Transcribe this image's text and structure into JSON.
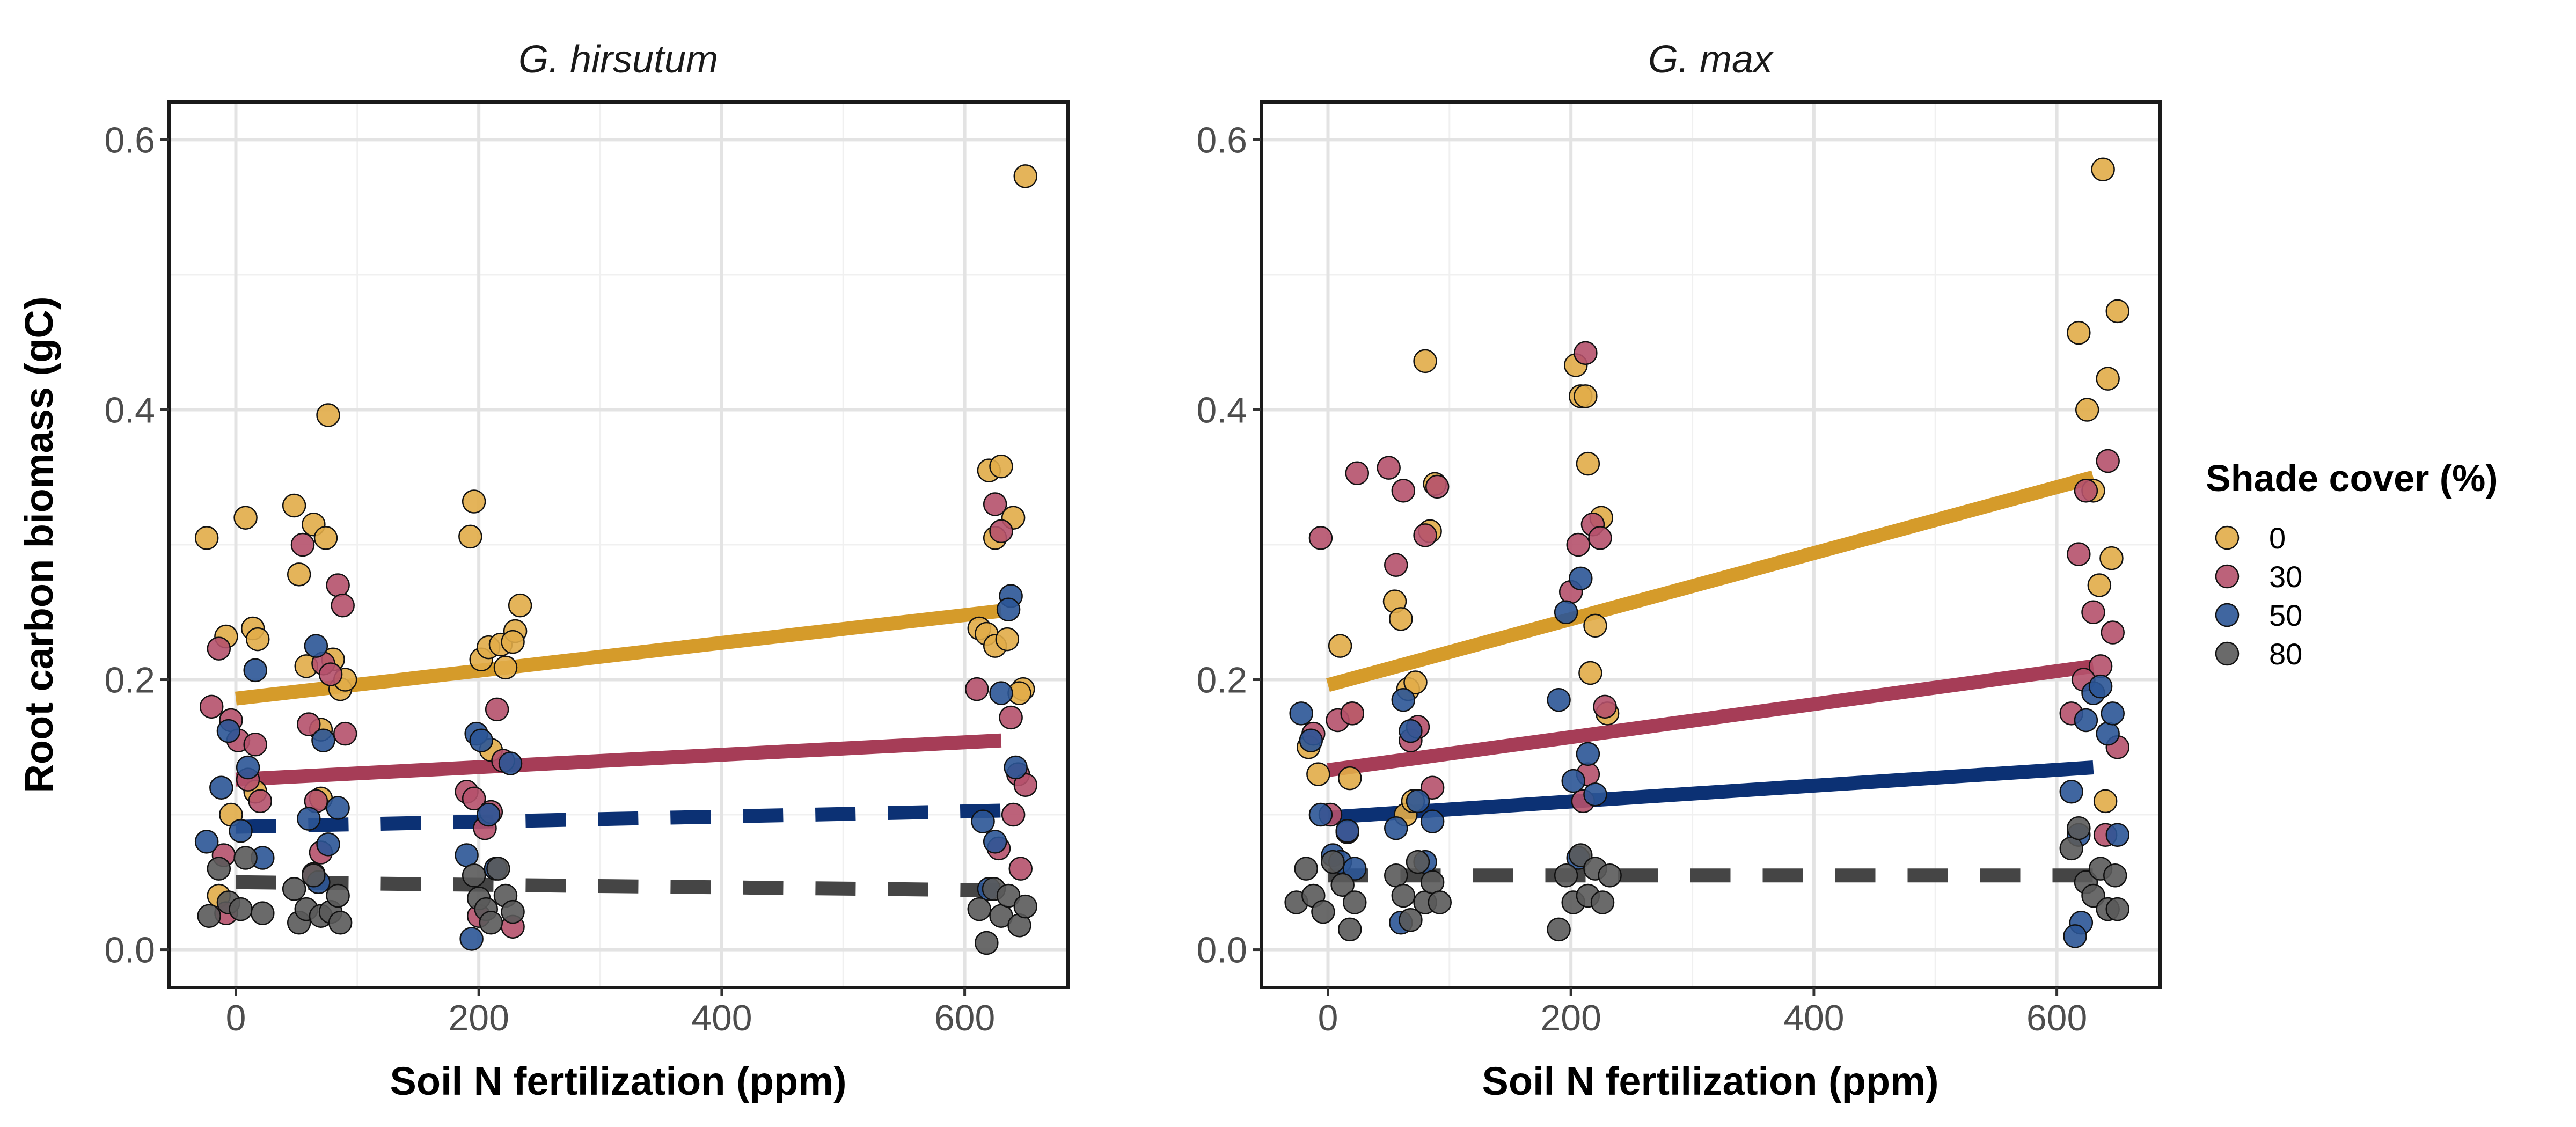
{
  "chart_data": {
    "type": "scatter",
    "ylabel": "Root carbon biomass (gC)",
    "xlabel": "Soil N fertilization (ppm)",
    "x_ticks": [
      "0",
      "200",
      "400",
      "600"
    ],
    "y_ticks": [
      "0.0",
      "0.2",
      "0.4",
      "0.6"
    ],
    "xlim": [
      -55,
      685
    ],
    "ylim": [
      -0.028,
      0.628
    ],
    "grid": true,
    "legend": {
      "title": "Shade cover (%)",
      "position": "right",
      "entries": [
        {
          "label": "0",
          "color": "#E1AC48"
        },
        {
          "label": "30",
          "color": "#B5516B"
        },
        {
          "label": "50",
          "color": "#2B5596"
        },
        {
          "label": "80",
          "color": "#5A5A5A"
        }
      ]
    },
    "line_colors": {
      "0": "#D59B2A",
      "30": "#A63D57",
      "50": "#0C3174",
      "80": "#454545"
    },
    "panels": [
      {
        "title": "G. hirsutum",
        "fit_lines": [
          {
            "shade": "0",
            "style": "solid",
            "x": [
              0,
              630
            ],
            "y": [
              0.186,
              0.251
            ]
          },
          {
            "shade": "30",
            "style": "solid",
            "x": [
              0,
              630
            ],
            "y": [
              0.126,
              0.155
            ]
          },
          {
            "shade": "50",
            "style": "dashed",
            "x": [
              0,
              630
            ],
            "y": [
              0.091,
              0.103
            ]
          },
          {
            "shade": "80",
            "style": "dashed",
            "x": [
              0,
              630
            ],
            "y": [
              0.05,
              0.044
            ]
          }
        ],
        "points": [
          {
            "shade": "0",
            "x": [
              -24,
              -8,
              -4,
              8,
              14,
              18,
              -14,
              16,
              48,
              52,
              58,
              64,
              70,
              74,
              80,
              76,
              86,
              70,
              90,
              196,
              193,
              202,
              208,
              218,
              222,
              230,
              234,
              228,
              210,
              620,
              630,
              625,
              640,
              612,
              618,
              625,
              635,
              648,
              645,
              650
            ],
            "y": [
              0.305,
              0.232,
              0.1,
              0.32,
              0.238,
              0.23,
              0.04,
              0.117,
              0.329,
              0.278,
              0.21,
              0.315,
              0.163,
              0.305,
              0.215,
              0.396,
              0.193,
              0.112,
              0.2,
              0.332,
              0.306,
              0.215,
              0.224,
              0.226,
              0.209,
              0.236,
              0.255,
              0.228,
              0.148,
              0.355,
              0.358,
              0.305,
              0.32,
              0.238,
              0.234,
              0.225,
              0.23,
              0.193,
              0.19,
              0.573
            ]
          },
          {
            "shade": "30",
            "x": [
              -20,
              -14,
              -8,
              -4,
              2,
              10,
              16,
              20,
              -10,
              55,
              60,
              66,
              72,
              78,
              84,
              88,
              90,
              64,
              70,
              190,
              196,
              205,
              210,
              215,
              220,
              228,
              200,
              610,
              625,
              630,
              638,
              644,
              650,
              628,
              640,
              646
            ],
            "y": [
              0.18,
              0.223,
              0.027,
              0.17,
              0.155,
              0.126,
              0.152,
              0.11,
              0.07,
              0.3,
              0.167,
              0.11,
              0.212,
              0.204,
              0.27,
              0.255,
              0.16,
              0.056,
              0.072,
              0.117,
              0.112,
              0.09,
              0.102,
              0.178,
              0.14,
              0.017,
              0.025,
              0.193,
              0.33,
              0.31,
              0.172,
              0.13,
              0.122,
              0.075,
              0.1,
              0.06
            ]
          },
          {
            "shade": "50",
            "x": [
              -24,
              -12,
              -6,
              4,
              10,
              16,
              22,
              60,
              66,
              72,
              76,
              84,
              68,
              190,
              198,
              202,
              208,
              214,
              226,
              194,
              615,
              625,
              630,
              638,
              642,
              636,
              620
            ],
            "y": [
              0.08,
              0.12,
              0.162,
              0.088,
              0.135,
              0.207,
              0.068,
              0.097,
              0.225,
              0.155,
              0.078,
              0.105,
              0.05,
              0.07,
              0.16,
              0.155,
              0.1,
              0.06,
              0.138,
              0.008,
              0.095,
              0.08,
              0.19,
              0.262,
              0.135,
              0.252,
              0.045
            ]
          },
          {
            "shade": "80",
            "x": [
              -22,
              -14,
              -6,
              4,
              8,
              22,
              48,
              52,
              58,
              64,
              70,
              78,
              84,
              86,
              196,
              200,
              206,
              210,
              216,
              222,
              228,
              612,
              618,
              624,
              630,
              636,
              645,
              650
            ],
            "y": [
              0.025,
              0.06,
              0.035,
              0.03,
              0.068,
              0.027,
              0.045,
              0.02,
              0.03,
              0.055,
              0.025,
              0.028,
              0.04,
              0.02,
              0.055,
              0.038,
              0.03,
              0.02,
              0.06,
              0.04,
              0.028,
              0.03,
              0.005,
              0.045,
              0.025,
              0.04,
              0.018,
              0.032
            ]
          }
        ]
      },
      {
        "title": "G. max",
        "fit_lines": [
          {
            "shade": "0",
            "style": "solid",
            "x": [
              0,
              630
            ],
            "y": [
              0.196,
              0.35
            ]
          },
          {
            "shade": "30",
            "style": "solid",
            "x": [
              0,
              630
            ],
            "y": [
              0.133,
              0.21
            ]
          },
          {
            "shade": "50",
            "style": "solid",
            "x": [
              0,
              630
            ],
            "y": [
              0.098,
              0.135
            ]
          },
          {
            "shade": "80",
            "style": "dashed",
            "x": [
              0,
              630
            ],
            "y": [
              0.055,
              0.055
            ]
          }
        ],
        "points": [
          {
            "shade": "0",
            "x": [
              -16,
              -8,
              10,
              18,
              20,
              55,
              60,
              66,
              72,
              80,
              84,
              88,
              64,
              70,
              204,
              208,
              212,
              214,
              220,
              225,
              230,
              216,
              618,
              625,
              630,
              638,
              642,
              645,
              650,
              635,
              640
            ],
            "y": [
              0.15,
              0.13,
              0.225,
              0.127,
              0.175,
              0.258,
              0.245,
              0.193,
              0.198,
              0.436,
              0.31,
              0.345,
              0.1,
              0.11,
              0.433,
              0.41,
              0.41,
              0.36,
              0.24,
              0.32,
              0.175,
              0.205,
              0.457,
              0.4,
              0.34,
              0.578,
              0.423,
              0.29,
              0.473,
              0.27,
              0.11
            ]
          },
          {
            "shade": "30",
            "x": [
              -12,
              -6,
              2,
              8,
              16,
              20,
              24,
              50,
              56,
              62,
              68,
              74,
              80,
              86,
              90,
              200,
              206,
              212,
              218,
              224,
              228,
              214,
              210,
              612,
              618,
              624,
              630,
              636,
              642,
              646,
              650,
              640,
              622
            ],
            "y": [
              0.16,
              0.305,
              0.1,
              0.17,
              0.087,
              0.175,
              0.353,
              0.357,
              0.285,
              0.34,
              0.155,
              0.165,
              0.307,
              0.12,
              0.343,
              0.265,
              0.3,
              0.442,
              0.315,
              0.305,
              0.18,
              0.13,
              0.11,
              0.175,
              0.293,
              0.34,
              0.25,
              0.21,
              0.362,
              0.235,
              0.15,
              0.085,
              0.2
            ]
          },
          {
            "shade": "50",
            "x": [
              -22,
              -14,
              -6,
              4,
              10,
              16,
              22,
              56,
              62,
              68,
              74,
              80,
              86,
              60,
              190,
              196,
              202,
              208,
              214,
              220,
              206,
              612,
              618,
              624,
              630,
              636,
              642,
              646,
              650,
              620,
              615
            ],
            "y": [
              0.175,
              0.155,
              0.1,
              0.07,
              0.065,
              0.088,
              0.06,
              0.09,
              0.185,
              0.162,
              0.11,
              0.065,
              0.095,
              0.02,
              0.185,
              0.25,
              0.125,
              0.275,
              0.145,
              0.115,
              0.068,
              0.117,
              0.085,
              0.17,
              0.19,
              0.195,
              0.16,
              0.175,
              0.085,
              0.02,
              0.01
            ]
          },
          {
            "shade": "80",
            "x": [
              -26,
              -18,
              -12,
              -4,
              4,
              12,
              18,
              22,
              56,
              62,
              68,
              74,
              80,
              86,
              92,
              190,
              196,
              202,
              208,
              214,
              220,
              226,
              232,
              612,
              618,
              624,
              630,
              636,
              642,
              648,
              650
            ],
            "y": [
              0.035,
              0.06,
              0.04,
              0.028,
              0.065,
              0.048,
              0.015,
              0.035,
              0.055,
              0.04,
              0.022,
              0.065,
              0.035,
              0.05,
              0.035,
              0.015,
              0.055,
              0.035,
              0.07,
              0.04,
              0.06,
              0.035,
              0.055,
              0.075,
              0.09,
              0.05,
              0.04,
              0.06,
              0.03,
              0.055,
              0.03
            ]
          }
        ]
      }
    ]
  }
}
